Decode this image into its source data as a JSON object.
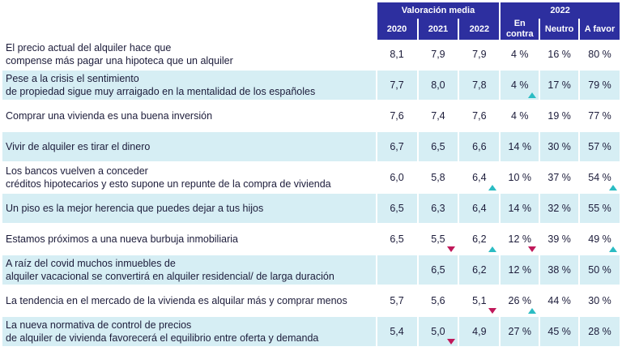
{
  "header": {
    "group_valoracion": "Valoración media",
    "group_2022": "2022",
    "years": [
      "2020",
      "2021",
      "2022"
    ],
    "opinion": [
      "En contra",
      "Neutro",
      "A favor"
    ]
  },
  "rows": [
    {
      "line1": "El precio actual del alquiler hace que",
      "line2": "compense más pagar una hipoteca que un alquiler",
      "v2020": "8,1",
      "v2021": "7,9",
      "v2022": "7,9",
      "contra": "4 %",
      "neutro": "16 %",
      "favor": "80 %"
    },
    {
      "line1": "Pese a la crisis el sentimiento",
      "line2": "de propiedad sigue muy arraigado en la mentalidad de los españoles",
      "v2020": "7,7",
      "v2021": "8,0",
      "v2022": "7,8",
      "contra": "4 %",
      "neutro": "17 %",
      "favor": "79 %"
    },
    {
      "line1": "Comprar una vivienda es una buena inversión",
      "line2": "",
      "v2020": "7,6",
      "v2021": "7,4",
      "v2022": "7,6",
      "contra": "4 %",
      "neutro": "19 %",
      "favor": "77 %"
    },
    {
      "line1": "Vivir de alquiler es tirar el dinero",
      "line2": "",
      "v2020": "6,7",
      "v2021": "6,5",
      "v2022": "6,6",
      "contra": "14 %",
      "neutro": "30 %",
      "favor": "57 %"
    },
    {
      "line1": "Los bancos vuelven a conceder",
      "line2": "créditos hipotecarios y esto supone un repunte de la compra de vivienda",
      "v2020": "6,0",
      "v2021": "5,8",
      "v2022": "6,4",
      "contra": "10 %",
      "neutro": "37 %",
      "favor": "54 %"
    },
    {
      "line1": "Un piso es la mejor herencia que puedes dejar a tus hijos",
      "line2": "",
      "v2020": "6,5",
      "v2021": "6,3",
      "v2022": "6,4",
      "contra": "14 %",
      "neutro": "32 %",
      "favor": "55 %"
    },
    {
      "line1": "Estamos próximos a una nueva burbuja inmobiliaria",
      "line2": "",
      "v2020": "6,5",
      "v2021": "5,5",
      "v2022": "6,2",
      "contra": "12 %",
      "neutro": "39 %",
      "favor": "49 %"
    },
    {
      "line1": "A raíz del covid muchos inmuebles de",
      "line2": "alquiler vacacional se convertirá en alquiler residencial/ de larga duración",
      "v2020": "",
      "v2021": "6,5",
      "v2022": "6,2",
      "contra": "12 %",
      "neutro": "38 %",
      "favor": "50 %"
    },
    {
      "line1": "La tendencia en el mercado de la vivienda es alquilar más y comprar menos",
      "line2": "",
      "v2020": "5,7",
      "v2021": "5,6",
      "v2022": "5,1",
      "contra": "26 %",
      "neutro": "44 %",
      "favor": "30 %"
    },
    {
      "line1": "La nueva normativa de control de precios",
      "line2": "de alquiler de vivienda favorecerá el equilibrio entre oferta y demanda",
      "v2020": "5,4",
      "v2021": "5,0",
      "v2022": "4,9",
      "contra": "27 %",
      "neutro": "45 %",
      "favor": "28 %"
    }
  ],
  "indicators": [
    {
      "row": 1,
      "col": "contra",
      "dir": "up"
    },
    {
      "row": 4,
      "col": "v2022",
      "dir": "up"
    },
    {
      "row": 4,
      "col": "favor",
      "dir": "up"
    },
    {
      "row": 6,
      "col": "v2021",
      "dir": "down"
    },
    {
      "row": 6,
      "col": "v2022",
      "dir": "up"
    },
    {
      "row": 6,
      "col": "contra",
      "dir": "down"
    },
    {
      "row": 6,
      "col": "favor",
      "dir": "up"
    },
    {
      "row": 8,
      "col": "v2022",
      "dir": "down"
    },
    {
      "row": 8,
      "col": "contra",
      "dir": "up"
    },
    {
      "row": 9,
      "col": "v2021",
      "dir": "down"
    }
  ],
  "colors": {
    "header": "#2d2f9f",
    "shade": "#d6eef4",
    "up": "#2bbcc3",
    "down": "#c0185a"
  }
}
